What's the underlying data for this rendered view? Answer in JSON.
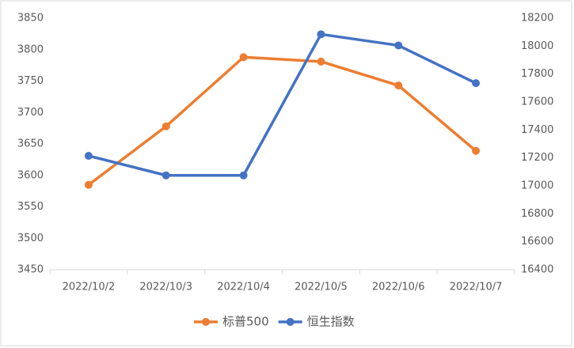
{
  "chart_data": {
    "type": "line",
    "categories": [
      "2022/10/2",
      "2022/10/3",
      "2022/10/4",
      "2022/10/5",
      "2022/10/6",
      "2022/10/7"
    ],
    "series": [
      {
        "name": "标普500",
        "color": "#ed7d31",
        "values": [
          3585,
          3678,
          3788,
          3781,
          3743,
          3639
        ]
      },
      {
        "name": "恒生指数",
        "color": "#4472c4",
        "axis": "y2",
        "values": [
          17215,
          17075,
          17075,
          18085,
          18005,
          17735
        ]
      }
    ],
    "ylim": [
      3450,
      3850
    ],
    "yticks": [
      3450,
      3500,
      3550,
      3600,
      3650,
      3700,
      3750,
      3800,
      3850
    ],
    "y2lim": [
      16400,
      18200
    ],
    "y2ticks": [
      16400,
      16600,
      16800,
      17000,
      17200,
      17400,
      17600,
      17800,
      18000,
      18200
    ],
    "legend": "bottom"
  }
}
